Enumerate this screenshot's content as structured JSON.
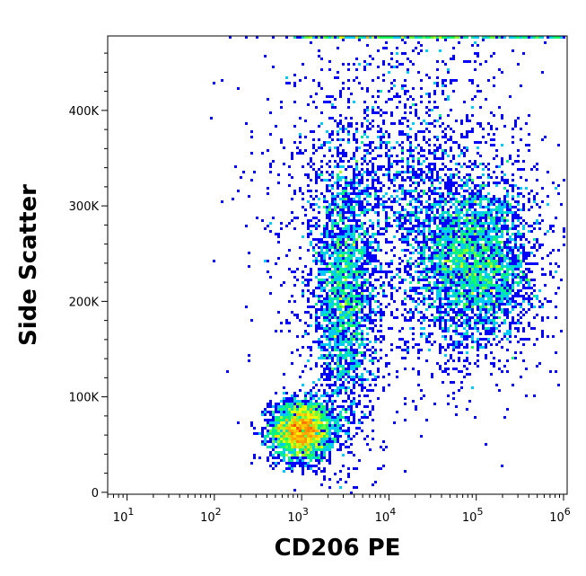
{
  "chart_data": {
    "type": "scatter",
    "subtype": "flow-cytometry-density-plot",
    "xlabel": "CD206 PE",
    "ylabel": "Side Scatter",
    "x_scale": "log",
    "xlim": [
      6,
      1100000
    ],
    "ylim": [
      -2000,
      478000
    ],
    "x_ticks": [
      {
        "value": 10,
        "base": "10",
        "exp": "1"
      },
      {
        "value": 100,
        "base": "10",
        "exp": "2"
      },
      {
        "value": 1000,
        "base": "10",
        "exp": "3"
      },
      {
        "value": 10000,
        "base": "10",
        "exp": "4"
      },
      {
        "value": 100000,
        "base": "10",
        "exp": "5"
      },
      {
        "value": 1000000,
        "base": "10",
        "exp": "6"
      }
    ],
    "y_ticks": [
      {
        "value": 0,
        "label": "0"
      },
      {
        "value": 100000,
        "label": "100K"
      },
      {
        "value": 200000,
        "label": "200K"
      },
      {
        "value": 300000,
        "label": "300K"
      },
      {
        "value": 400000,
        "label": "400K"
      }
    ],
    "populations": [
      {
        "x_center": 1000,
        "y_center": 65000,
        "x_spread_decades": 0.18,
        "y_spread": 16000,
        "density": "peak"
      },
      {
        "x_center": 3000,
        "y_center": 200000,
        "x_spread_decades": 0.18,
        "y_spread": 70000,
        "density": "medium"
      },
      {
        "x_center": 100000,
        "y_center": 240000,
        "x_spread_decades": 0.35,
        "y_spread": 45000,
        "density": "high"
      },
      {
        "x_center": 15000,
        "y_center": 300000,
        "x_spread_decades": 0.7,
        "y_spread": 90000,
        "density": "low"
      }
    ],
    "color_scale": [
      "#0000ff",
      "#00c8ff",
      "#00ff64",
      "#ffff00",
      "#ff8000",
      "#ff0000"
    ],
    "grid": false,
    "legend": "none"
  }
}
